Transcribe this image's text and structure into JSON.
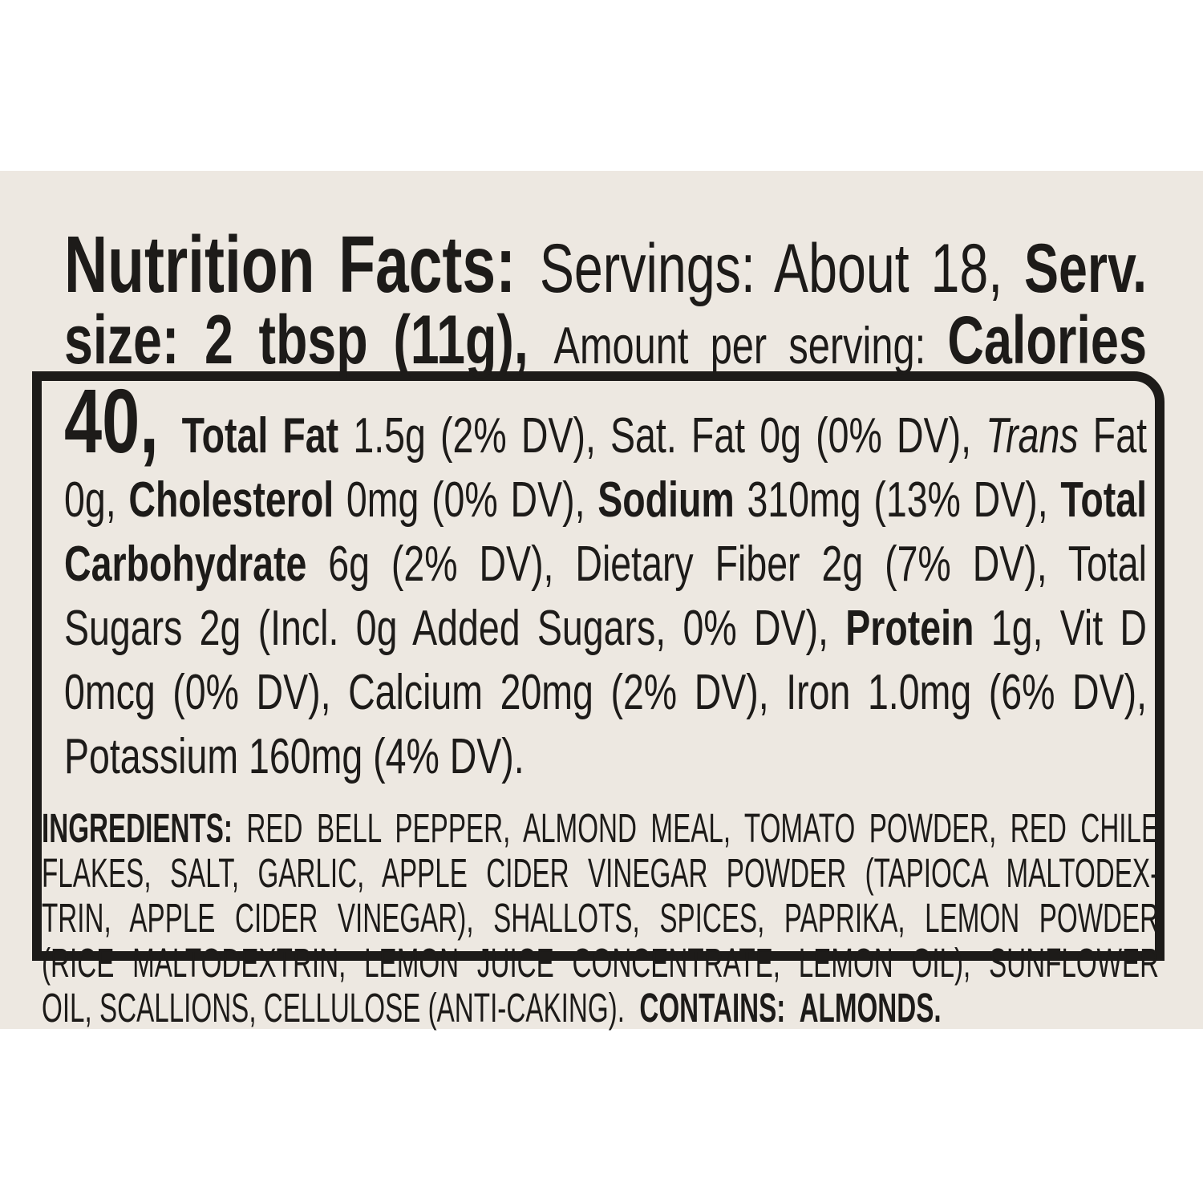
{
  "colors": {
    "page_background": "#FFFFFF",
    "panel_background": "#EDE8E1",
    "ink": "#1D1B19"
  },
  "nutrition": {
    "title": "Nutrition Facts: ",
    "servings": "Servings: About 18, ",
    "serving_size": "Serv. size: 2 tbsp (11g), ",
    "amount_per_serving": "Amount per serving: ",
    "calories_word": "Calories ",
    "calories_value": "40, ",
    "total_fat_label": "Total Fat ",
    "total_fat_values": "1.5g (2% DV), Sat. Fat 0g (0% DV), ",
    "trans_italic": "Trans",
    "trans_fat_values": " Fat 0g, ",
    "cholesterol_label": "Cholesterol ",
    "cholesterol_values": "0mg (0% DV), ",
    "sodium_label": "Sodium ",
    "sodium_values": "310mg (13% DV), ",
    "carb_label": "Total Carbohydrate ",
    "carb_values": "6g (2% DV), Dietary Fiber 2g (7% DV), Total Sugars 2g (Incl. 0g Added Sugars, 0% DV), ",
    "protein_label": "Protein ",
    "protein_and_micros": "1g, Vit D 0mcg (0% DV), Calcium 20mg (2% DV), Iron 1.0mg (6% DV), Potassium 160mg (4% DV)."
  },
  "ingredients": {
    "line1_bold": "INGREDIENTS:",
    "line1_rest": " RED BELL PEPPER, ALMOND MEAL, TOMATO POWDER, RED CHILE",
    "line2": "FLAKES, SALT, GARLIC, APPLE CIDER VINEGAR POWDER (TAPIOCA MALTODEX-",
    "line3": "TRIN, APPLE CIDER VINEGAR), SHALLOTS, SPICES, PAPRIKA, LEMON POWDER",
    "line4": "(RICE MALTODEXTRIN, LEMON JUICE CONCENTRATE, LEMON OIL), SUNFLOWER",
    "line5_rest": "OIL, SCALLIONS, CELLULOSE (ANTI-CAKING).  ",
    "line5_bold": "CONTAINS:  ALMONDS."
  }
}
